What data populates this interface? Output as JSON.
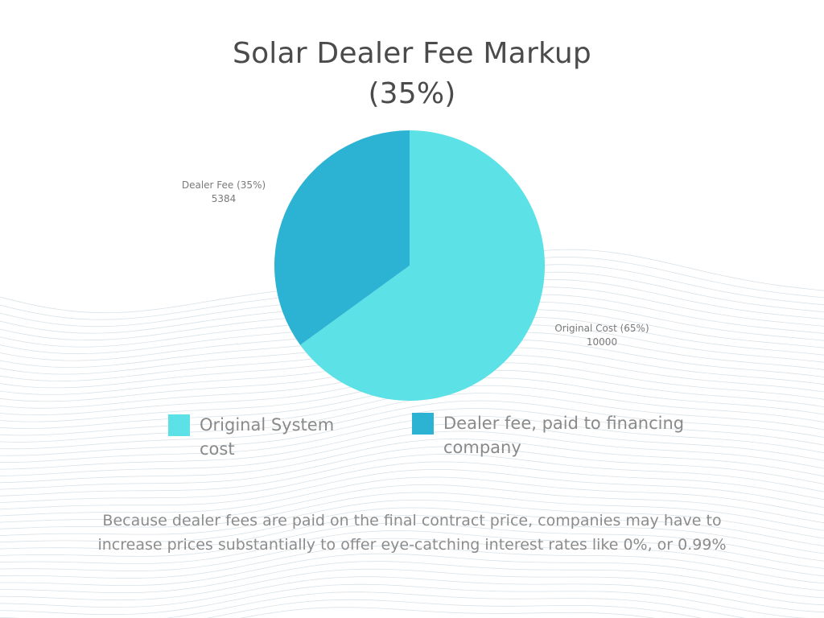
{
  "title_line1": "Solar Dealer Fee Markup",
  "title_line2": "(35%)",
  "chart_data": {
    "type": "pie",
    "title": "Solar Dealer Fee Markup (35%)",
    "slices": [
      {
        "name": "Original Cost (65%)",
        "value": 10000,
        "value_label": "10000",
        "color": "#5ce1e6"
      },
      {
        "name": "Dealer Fee (35%)",
        "value": 5384,
        "value_label": "5384",
        "color": "#2cb3d4"
      }
    ],
    "legend": {
      "placement": "bottom",
      "entries": [
        {
          "label_line1": "Original System",
          "label_line2": "cost",
          "color": "#5ce1e6"
        },
        {
          "label_line1": "Dealer fee, paid to financing",
          "label_line2": "company",
          "color": "#2cb3d4"
        }
      ]
    }
  },
  "footnote_line1": "Because dealer fees are paid on the final contract price, companies may have to",
  "footnote_line2": "increase prices substantially to offer eye-catching interest rates like 0%, or 0.99%",
  "colors": {
    "background": "#ffffff",
    "wave_lines": "#d9e2e8",
    "title": "#4b4b4b"
  }
}
